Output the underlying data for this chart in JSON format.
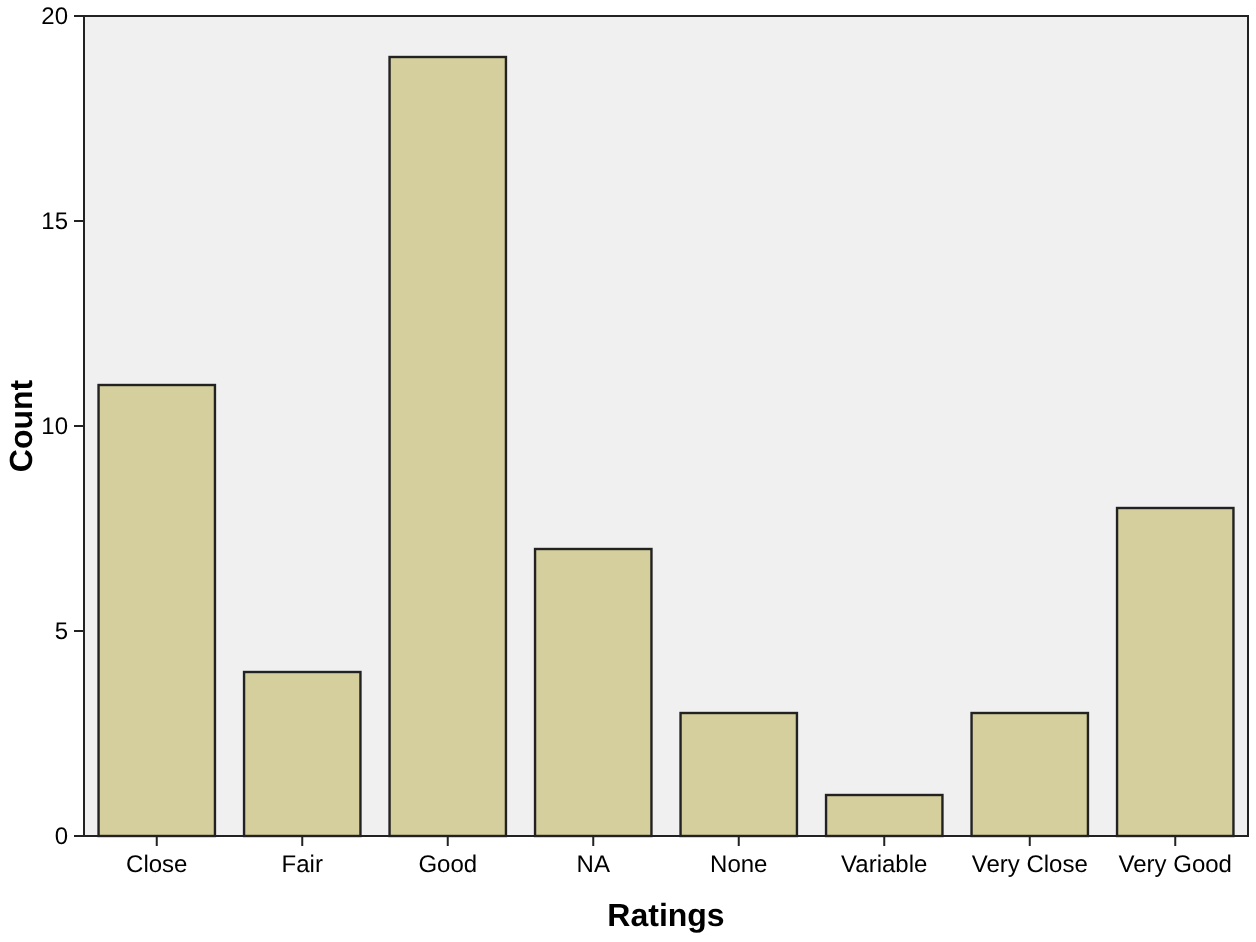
{
  "chart_data": {
    "type": "bar",
    "xlabel": "Ratings",
    "ylabel": "Count",
    "categories": [
      "Close",
      "Fair",
      "Good",
      "NA",
      "None",
      "Variable",
      "Very Close",
      "Very Good"
    ],
    "values": [
      11,
      4,
      19,
      7,
      3,
      1,
      3,
      8
    ],
    "color": "#d4cf9d",
    "ylim": [
      0,
      20
    ],
    "yticks": [
      0,
      5,
      10,
      15,
      20
    ],
    "grid": false
  }
}
